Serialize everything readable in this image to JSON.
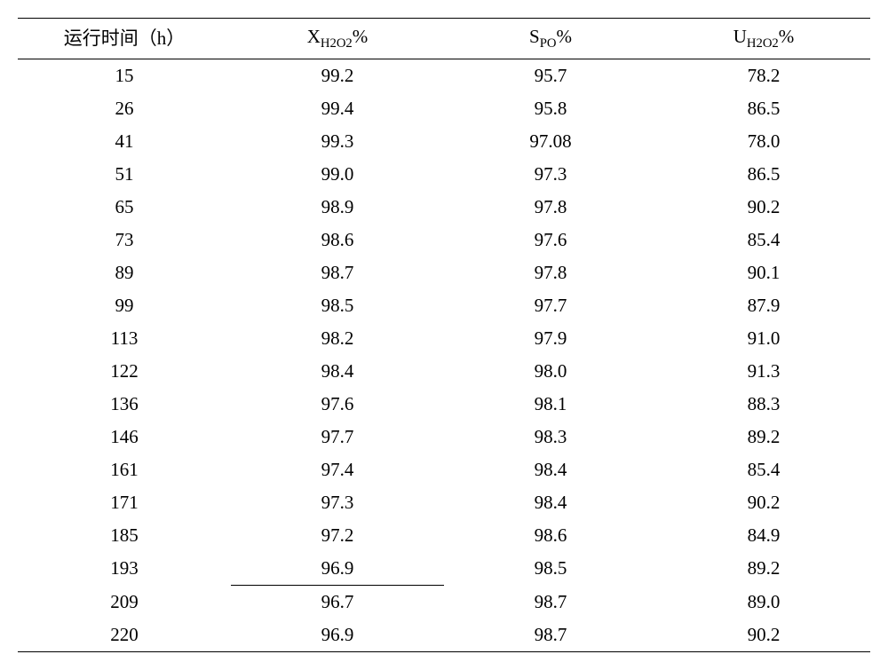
{
  "table": {
    "type": "table",
    "background_color": "#ffffff",
    "text_color": "#000000",
    "font_family": "Times New Roman, SimSun, serif",
    "header_fontsize": 21,
    "body_fontsize": 21,
    "border_color": "#000000",
    "top_border_width": 1.5,
    "header_bottom_border_width": 1.5,
    "bottom_border_width": 1.5,
    "mid_rule_width": 1,
    "mid_rule_after_row_index": 15,
    "mid_rule_column_index": 1,
    "column_widths_pct": [
      25,
      25,
      25,
      25
    ],
    "columns": [
      {
        "pre": "运行时间（h）",
        "sub": "",
        "post": ""
      },
      {
        "pre": "X",
        "sub": "H2O2",
        "post": "%"
      },
      {
        "pre": "S",
        "sub": "PO",
        "post": "%"
      },
      {
        "pre": "U",
        "sub": "H2O2",
        "post": "%"
      }
    ],
    "rows": [
      [
        "15",
        "99.2",
        "95.7",
        "78.2"
      ],
      [
        "26",
        "99.4",
        "95.8",
        "86.5"
      ],
      [
        "41",
        "99.3",
        "97.08",
        "78.0"
      ],
      [
        "51",
        "99.0",
        "97.3",
        "86.5"
      ],
      [
        "65",
        "98.9",
        "97.8",
        "90.2"
      ],
      [
        "73",
        "98.6",
        "97.6",
        "85.4"
      ],
      [
        "89",
        "98.7",
        "97.8",
        "90.1"
      ],
      [
        "99",
        "98.5",
        "97.7",
        "87.9"
      ],
      [
        "113",
        "98.2",
        "97.9",
        "91.0"
      ],
      [
        "122",
        "98.4",
        "98.0",
        "91.3"
      ],
      [
        "136",
        "97.6",
        "98.1",
        "88.3"
      ],
      [
        "146",
        "97.7",
        "98.3",
        "89.2"
      ],
      [
        "161",
        "97.4",
        "98.4",
        "85.4"
      ],
      [
        "171",
        "97.3",
        "98.4",
        "90.2"
      ],
      [
        "185",
        "97.2",
        "98.6",
        "84.9"
      ],
      [
        "193",
        "96.9",
        "98.5",
        "89.2"
      ],
      [
        "209",
        "96.7",
        "98.7",
        "89.0"
      ],
      [
        "220",
        "96.9",
        "98.7",
        "90.2"
      ]
    ]
  }
}
